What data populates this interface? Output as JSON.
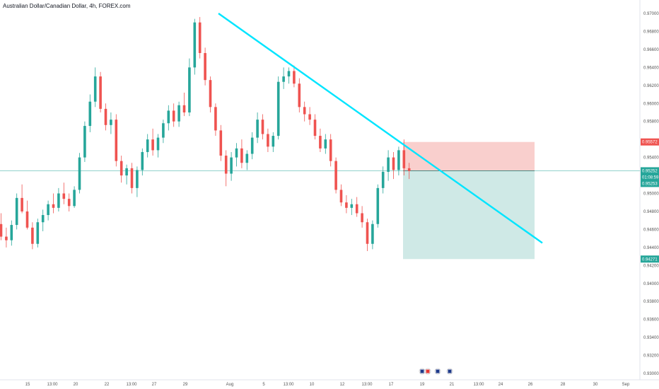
{
  "header": {
    "symbol_title": "Australian Dollar/Canadian Dollar, 4h, FOREX.com"
  },
  "colors": {
    "up": "#26a69a",
    "down": "#ef5350",
    "trendline": "#00e5ff",
    "stop_zone": "#f9cfcd",
    "target_zone": "#cfe9e6",
    "price_line": "#26a69a",
    "stop_badge": "#ef5350",
    "target_badge": "#26a69a"
  },
  "chart_data": {
    "type": "candlestick",
    "title": "Australian Dollar/Canadian Dollar, 4h, FOREX.com",
    "y_range": [
      0.93,
      0.97
    ],
    "y_ticks": [
      "0.97000",
      "0.96800",
      "0.96600",
      "0.96400",
      "0.96200",
      "0.96000",
      "0.95800",
      "0.95400",
      "0.95000",
      "0.94800",
      "0.94600",
      "0.94400",
      "0.94200",
      "0.94000",
      "0.93800",
      "0.93600",
      "0.93400",
      "0.93200",
      "0.93000"
    ],
    "x_ticks": [
      "15",
      "13:00",
      "20",
      "22",
      "13:00",
      "27",
      "29",
      "Aug",
      "5",
      "13:00",
      "10",
      "12",
      "13:00",
      "17",
      "19",
      "21",
      "13:00",
      "24",
      "26",
      "28",
      "30",
      "Sep"
    ],
    "last_price": {
      "label": "0.95252",
      "value": 0.95252,
      "countdown": "01:08:59",
      "secondary": "0.95253"
    },
    "position": {
      "entry": 0.95252,
      "stop": {
        "label": "0.95572",
        "value": 0.95572
      },
      "target": {
        "label": "0.94271",
        "value": 0.94271
      }
    },
    "trendline": {
      "from": 0.97,
      "to": 0.9445
    },
    "candles": [
      [
        0.9466,
        0.9478,
        0.9448,
        0.9452
      ],
      [
        0.9452,
        0.9462,
        0.944,
        0.9448
      ],
      [
        0.9448,
        0.947,
        0.9442,
        0.9465
      ],
      [
        0.9465,
        0.95,
        0.946,
        0.9495
      ],
      [
        0.9495,
        0.951,
        0.9478,
        0.948
      ],
      [
        0.948,
        0.9492,
        0.946,
        0.9462
      ],
      [
        0.9462,
        0.9468,
        0.9438,
        0.9444
      ],
      [
        0.9444,
        0.9472,
        0.944,
        0.9468
      ],
      [
        0.9468,
        0.9482,
        0.9458,
        0.9476
      ],
      [
        0.9476,
        0.9492,
        0.947,
        0.9488
      ],
      [
        0.9488,
        0.95,
        0.9478,
        0.9484
      ],
      [
        0.9484,
        0.9506,
        0.948,
        0.95
      ],
      [
        0.95,
        0.9512,
        0.9488,
        0.9494
      ],
      [
        0.9494,
        0.95,
        0.948,
        0.9486
      ],
      [
        0.9486,
        0.9508,
        0.9484,
        0.9504
      ],
      [
        0.9504,
        0.9545,
        0.95,
        0.954
      ],
      [
        0.954,
        0.958,
        0.9535,
        0.9575
      ],
      [
        0.9575,
        0.961,
        0.9568,
        0.9602
      ],
      [
        0.9602,
        0.964,
        0.9596,
        0.963
      ],
      [
        0.963,
        0.9635,
        0.959,
        0.9594
      ],
      [
        0.9594,
        0.96,
        0.957,
        0.9576
      ],
      [
        0.9576,
        0.959,
        0.9566,
        0.9582
      ],
      [
        0.9582,
        0.9588,
        0.953,
        0.9536
      ],
      [
        0.9536,
        0.9542,
        0.9512,
        0.952
      ],
      [
        0.952,
        0.9532,
        0.951,
        0.9528
      ],
      [
        0.9528,
        0.9534,
        0.95,
        0.9506
      ],
      [
        0.9506,
        0.953,
        0.9496,
        0.9526
      ],
      [
        0.9526,
        0.955,
        0.952,
        0.9546
      ],
      [
        0.9546,
        0.9566,
        0.954,
        0.956
      ],
      [
        0.956,
        0.9572,
        0.9542,
        0.9548
      ],
      [
        0.9548,
        0.9566,
        0.954,
        0.9562
      ],
      [
        0.9562,
        0.9582,
        0.9556,
        0.9578
      ],
      [
        0.9578,
        0.9598,
        0.957,
        0.9592
      ],
      [
        0.9592,
        0.96,
        0.9574,
        0.958
      ],
      [
        0.958,
        0.9602,
        0.9574,
        0.9598
      ],
      [
        0.9598,
        0.9612,
        0.9586,
        0.959
      ],
      [
        0.959,
        0.965,
        0.9586,
        0.964
      ],
      [
        0.964,
        0.9694,
        0.9632,
        0.969
      ],
      [
        0.969,
        0.9696,
        0.965,
        0.9656
      ],
      [
        0.9656,
        0.9662,
        0.962,
        0.9626
      ],
      [
        0.9626,
        0.963,
        0.959,
        0.9596
      ],
      [
        0.9596,
        0.96,
        0.9564,
        0.957
      ],
      [
        0.957,
        0.9576,
        0.9536,
        0.9542
      ],
      [
        0.9542,
        0.9548,
        0.9508,
        0.9522
      ],
      [
        0.9522,
        0.9546,
        0.9514,
        0.954
      ],
      [
        0.954,
        0.9556,
        0.953,
        0.955
      ],
      [
        0.955,
        0.956,
        0.9528,
        0.9534
      ],
      [
        0.9534,
        0.9548,
        0.9526,
        0.9544
      ],
      [
        0.9544,
        0.9568,
        0.9538,
        0.9562
      ],
      [
        0.9562,
        0.959,
        0.9556,
        0.9582
      ],
      [
        0.9582,
        0.9588,
        0.956,
        0.9566
      ],
      [
        0.9566,
        0.9572,
        0.9546,
        0.9552
      ],
      [
        0.9552,
        0.9568,
        0.9546,
        0.9564
      ],
      [
        0.9564,
        0.963,
        0.956,
        0.9624
      ],
      [
        0.9624,
        0.964,
        0.9616,
        0.963
      ],
      [
        0.963,
        0.964,
        0.9622,
        0.9636
      ],
      [
        0.9636,
        0.9642,
        0.9618,
        0.9622
      ],
      [
        0.9622,
        0.9628,
        0.959,
        0.9596
      ],
      [
        0.9596,
        0.9602,
        0.958,
        0.9588
      ],
      [
        0.9588,
        0.9596,
        0.9576,
        0.9582
      ],
      [
        0.9582,
        0.9588,
        0.956,
        0.9564
      ],
      [
        0.9564,
        0.9572,
        0.9546,
        0.955
      ],
      [
        0.955,
        0.9566,
        0.9544,
        0.956
      ],
      [
        0.956,
        0.9566,
        0.953,
        0.9536
      ],
      [
        0.9536,
        0.954,
        0.95,
        0.9504
      ],
      [
        0.9504,
        0.951,
        0.9486,
        0.949
      ],
      [
        0.949,
        0.9498,
        0.9478,
        0.9484
      ],
      [
        0.9484,
        0.9494,
        0.9476,
        0.9488
      ],
      [
        0.9488,
        0.9496,
        0.9474,
        0.9478
      ],
      [
        0.9478,
        0.9486,
        0.9462,
        0.9468
      ],
      [
        0.9468,
        0.9472,
        0.9436,
        0.9444
      ],
      [
        0.9444,
        0.947,
        0.9438,
        0.9466
      ],
      [
        0.9466,
        0.951,
        0.9462,
        0.9506
      ],
      [
        0.9506,
        0.953,
        0.95,
        0.9524
      ],
      [
        0.9524,
        0.9548,
        0.9514,
        0.954
      ],
      [
        0.954,
        0.9546,
        0.9516,
        0.9526
      ],
      [
        0.9526,
        0.9552,
        0.952,
        0.9548
      ],
      [
        0.9548,
        0.956,
        0.952,
        0.9528
      ],
      [
        0.9528,
        0.9534,
        0.9516,
        0.9525
      ]
    ]
  },
  "event_icons": [
    "au-flag-icon",
    "ca-flag-icon",
    "au-flag-icon",
    "au-flag-icon"
  ]
}
